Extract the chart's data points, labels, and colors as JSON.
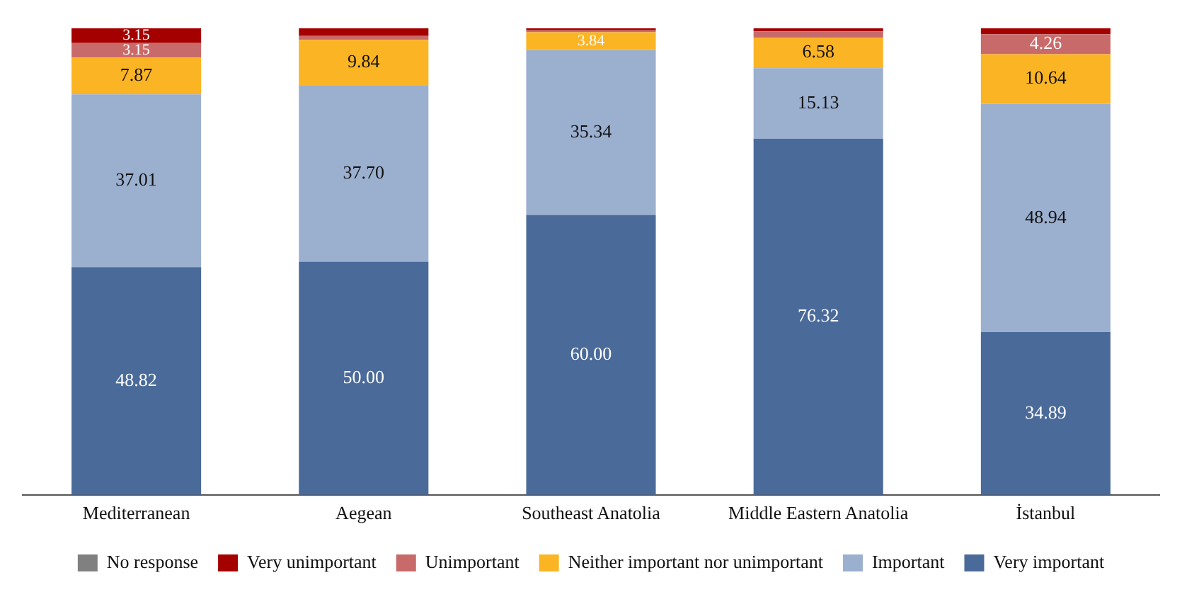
{
  "chart_data": {
    "type": "bar",
    "stacked": true,
    "categories": [
      "Mediterranean",
      "Aegean",
      "Southeast Anatolia",
      "Middle Eastern Anatolia",
      "İstanbul"
    ],
    "series": [
      {
        "name": "Very important",
        "color": "#4a6a9a",
        "values": [
          48.82,
          50.0,
          60.0,
          76.32,
          34.89
        ],
        "value_labels": [
          "48.82",
          "50.00",
          "60.00",
          "76.32",
          "34.89"
        ]
      },
      {
        "name": "Important",
        "color": "#9bafcf",
        "values": [
          37.01,
          37.7,
          35.34,
          15.13,
          48.94
        ],
        "value_labels": [
          "37.01",
          "37.70",
          "35.34",
          "15.13",
          "48.94"
        ]
      },
      {
        "name": "Neither important nor unimportant",
        "color": "#fbb424",
        "values": [
          7.87,
          9.84,
          3.84,
          6.58,
          10.64
        ],
        "value_labels": [
          "7.87",
          "9.84",
          "3.84",
          "6.58",
          "10.64"
        ]
      },
      {
        "name": "Unimportant",
        "color": "#c96a6a",
        "values": [
          3.15,
          0.82,
          0.41,
          1.32,
          4.26
        ],
        "value_labels": [
          "3.15",
          null,
          null,
          null,
          "4.26"
        ]
      },
      {
        "name": "Very unimportant",
        "color": "#a50000",
        "values": [
          3.15,
          1.64,
          0.41,
          0.66,
          1.27
        ],
        "value_labels": [
          "3.15",
          null,
          null,
          null,
          null
        ]
      },
      {
        "name": "No response",
        "color": "#808080",
        "values": [
          0,
          0,
          0,
          0,
          0
        ],
        "value_labels": [
          null,
          null,
          null,
          null,
          null
        ]
      }
    ],
    "ylim": [
      0,
      100
    ],
    "tick_labels": "x",
    "grid": false,
    "legend": "bottom"
  }
}
